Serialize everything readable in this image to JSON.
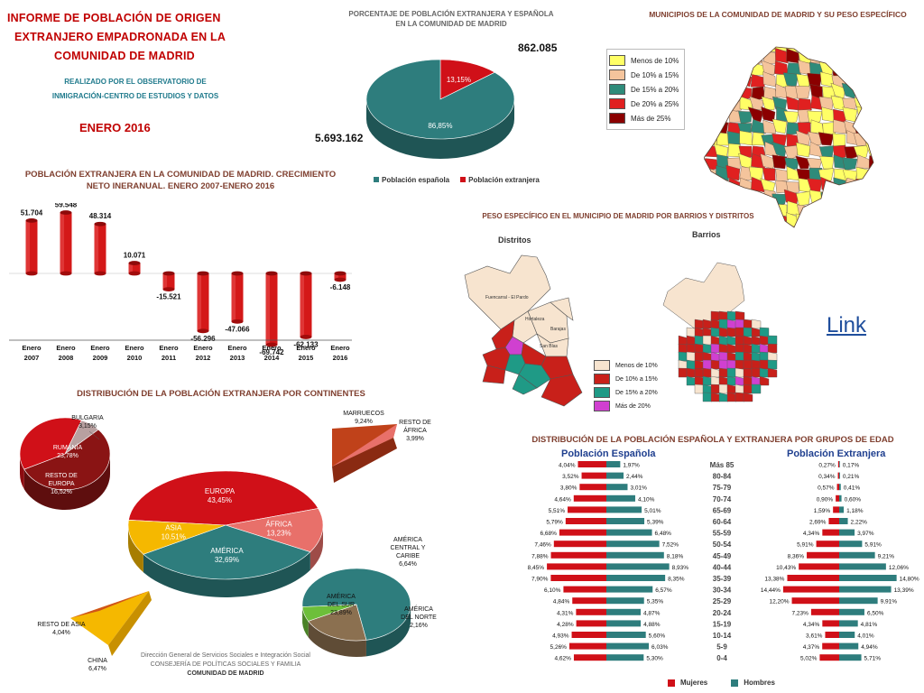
{
  "header": {
    "title_lines": [
      "INFORME DE POBLACIÓN DE ORIGEN",
      "EXTRANJERO EMPADRONADA EN LA",
      "COMUNIDAD DE MADRID"
    ],
    "subtitle_lines": [
      "REALIZADO POR EL OBSERVATORIO DE",
      "INMIGRACIÓN-CENTRO DE ESTUDIOS Y DATOS"
    ],
    "date": "ENERO 2016"
  },
  "pie_main": {
    "title_lines": [
      "PORCENTAJE DE POBLACIÓN EXTRANJERA Y ESPAÑOLA",
      "EN LA COMUNIDAD DE MADRID"
    ],
    "total_foreign": "862.085",
    "total_spanish": "5.693.162",
    "legend": [
      "Población española",
      "Población extranjera"
    ],
    "colors": [
      "#2e7d7d",
      "#d01018"
    ]
  },
  "map_region": {
    "title": "MUNICIPIOS DE LA COMUNIDAD DE MADRID Y SU PESO ESPECÍFICO",
    "legend": [
      {
        "label": "Menos de 10%",
        "color": "#ffff66"
      },
      {
        "label": "De 10% a  15%",
        "color": "#f4c49c"
      },
      {
        "label": "De 15% a  20%",
        "color": "#2e8b7a"
      },
      {
        "label": "De 20% a  25%",
        "color": "#e02020"
      },
      {
        "label": "Más de 25%",
        "color": "#8b0000"
      }
    ]
  },
  "map_city": {
    "title": "PESO ESPECÍFICO EN EL MUNICIPIO DE MADRID POR BARRIOS Y DISTRITOS",
    "distritos_label": "Distritos",
    "barrios_label": "Barrios",
    "district_names": [
      "Fuencarral - El Pardo",
      "Hortaleza",
      "Barajas",
      "San Blas"
    ],
    "legend": [
      {
        "label": "Menos de 10%",
        "color": "#f7e4cf"
      },
      {
        "label": "De 10% a 15%",
        "color": "#c8201a"
      },
      {
        "label": "De 15% a 20%",
        "color": "#1f9a86"
      },
      {
        "label": "Más de 20%",
        "color": "#d040d0"
      }
    ],
    "link_label": "Link"
  },
  "growth": {
    "title_lines": [
      "POBLACIÓN EXTRANJERA EN LA COMUNIDAD DE MADRID. CRECIMIENTO",
      "NETO INERANUAL. ENERO 2007-ENERO 2016"
    ]
  },
  "continents": {
    "title": "DISTRIBUCIÓN DE LA POBLACIÓN EXTRANJERA POR CONTINENTES",
    "footer_lines": [
      "Dirección General de Servicios Sociales e Integración Social",
      "CONSEJERÍA DE  POLÍTICAS SOCIALES Y FAMILIA",
      "COMUNIDAD DE MADRID"
    ]
  },
  "pyramid": {
    "title": "DISTRIBUCIÓN DE LA POBLACIÓN  ESPAÑOLA Y EXTRANJERA POR GRUPOS DE EDAD",
    "left_title": "Población Española",
    "right_title": "Población Extranjera",
    "legend": [
      "Mujeres",
      "Hombres"
    ]
  },
  "chart_data": [
    {
      "type": "pie",
      "title": "PORCENTAJE DE POBLACIÓN EXTRANJERA Y ESPAÑOLA EN LA COMUNIDAD DE MADRID",
      "categories": [
        "Población española",
        "Población extranjera"
      ],
      "values": [
        86.85,
        13.15
      ],
      "labels": [
        "86,85%",
        "13,15%"
      ],
      "colors": [
        "#2e7d7d",
        "#d01018"
      ]
    },
    {
      "type": "bar",
      "title": "POBLACIÓN EXTRANJERA EN LA COMUNIDAD DE MADRID. CRECIMIENTO NETO INERANUAL. ENERO 2007-ENERO 2016",
      "categories": [
        "Enero 2007",
        "Enero 2008",
        "Enero 2009",
        "Enero 2010",
        "Enero 2011",
        "Enero 2012",
        "Enero 2013",
        "Enero 2014",
        "Enero 2015",
        "Enero 2016"
      ],
      "values": [
        51704,
        59548,
        48314,
        10071,
        -15521,
        -56296,
        -47066,
        -69742,
        -62133,
        -6148
      ],
      "labels": [
        "51.704",
        "59.548",
        "48.314",
        "10.071",
        "-15.521",
        "-56.296",
        "-47.066",
        "-69.742",
        "-62.133",
        "-6.148"
      ],
      "ylim": [
        -70000,
        60000
      ]
    },
    {
      "type": "pie",
      "title": "DISTRIBUCIÓN DE LA POBLACIÓN EXTRANJERA POR CONTINENTES",
      "categories": [
        "EUROPA",
        "ÁFRICA",
        "AMÉRICA",
        "ASIA"
      ],
      "values": [
        43.45,
        13.23,
        32.69,
        10.51
      ],
      "labels": [
        "43,45%",
        "13,23%",
        "32,69%",
        "10,51%"
      ],
      "colors": [
        "#d01018",
        "#e8706a",
        "#2e7d7d",
        "#f5b800"
      ]
    },
    {
      "type": "pie",
      "title": "EUROPA",
      "categories": [
        "BULGARIA",
        "RUMANÍA",
        "RESTO DE EUROPA"
      ],
      "values": [
        3.15,
        23.78,
        16.52
      ],
      "labels": [
        "3,15%",
        "23,78%",
        "16,52%"
      ]
    },
    {
      "type": "pie",
      "title": "ÁFRICA",
      "categories": [
        "MARRUECOS",
        "RESTO DE ÁFRICA"
      ],
      "values": [
        9.24,
        3.99
      ],
      "labels": [
        "9,24%",
        "3,99%"
      ]
    },
    {
      "type": "pie",
      "title": "AMÉRICA",
      "categories": [
        "AMÉRICA DEL SUR",
        "AMÉRICA CENTRAL Y CARIBE",
        "AMÉRICA DEL NORTE"
      ],
      "values": [
        23.89,
        6.64,
        2.16
      ],
      "labels": [
        "23,89%",
        "6,64%",
        "2,16%"
      ]
    },
    {
      "type": "pie",
      "title": "ASIA",
      "categories": [
        "RESTO DE ASIA",
        "CHINA"
      ],
      "values": [
        4.04,
        6.47
      ],
      "labels": [
        "4,04%",
        "6,47%"
      ]
    },
    {
      "type": "bar",
      "title": "Población Española",
      "categories": [
        "Más 85",
        "80-84",
        "75-79",
        "70-74",
        "65-69",
        "60-64",
        "55-59",
        "50-54",
        "45-49",
        "40-44",
        "35-39",
        "30-34",
        "25-29",
        "20-24",
        "15-19",
        "10-14",
        "5-9",
        "0-4"
      ],
      "series": [
        {
          "name": "Mujeres",
          "values": [
            4.04,
            3.52,
            3.8,
            4.64,
            5.51,
            5.79,
            6.68,
            7.46,
            7.88,
            8.45,
            7.9,
            6.1,
            4.84,
            4.31,
            4.28,
            4.93,
            5.26,
            4.62
          ],
          "labels": [
            "4,04%",
            "3,52%",
            "3,80%",
            "4,64%",
            "5,51%",
            "5,79%",
            "6,68%",
            "7,46%",
            "7,88%",
            "8,45%",
            "7,90%",
            "6,10%",
            "4,84%",
            "4,31%",
            "4,28%",
            "4,93%",
            "5,26%",
            "4,62%"
          ]
        },
        {
          "name": "Hombres",
          "values": [
            1.97,
            2.44,
            3.01,
            4.1,
            5.01,
            5.39,
            6.48,
            7.52,
            8.18,
            8.93,
            8.35,
            6.57,
            5.35,
            4.87,
            4.88,
            5.6,
            6.03,
            5.3
          ],
          "labels": [
            "1,97%",
            "2,44%",
            "3,01%",
            "4,10%",
            "5,01%",
            "5,39%",
            "6,48%",
            "7,52%",
            "8,18%",
            "8,93%",
            "8,35%",
            "6,57%",
            "5,35%",
            "4,87%",
            "4,88%",
            "5,60%",
            "6,03%",
            "5,30%"
          ]
        }
      ]
    },
    {
      "type": "bar",
      "title": "Población Extranjera",
      "categories": [
        "Más 85",
        "80-84",
        "75-79",
        "70-74",
        "65-69",
        "60-64",
        "55-59",
        "50-54",
        "45-49",
        "40-44",
        "35-39",
        "30-34",
        "25-29",
        "20-24",
        "15-19",
        "10-14",
        "5-9",
        "0-4"
      ],
      "series": [
        {
          "name": "Mujeres",
          "values": [
            0.27,
            0.34,
            0.57,
            0.9,
            1.59,
            2.69,
            4.34,
            5.91,
            8.36,
            10.43,
            13.38,
            14.44,
            12.2,
            7.23,
            4.34,
            3.61,
            4.37,
            5.02
          ],
          "labels": [
            "0,27%",
            "0,34%",
            "0,57%",
            "0,90%",
            "1,59%",
            "2,69%",
            "4,34%",
            "5,91%",
            "8,36%",
            "10,43%",
            "13,38%",
            "14,44%",
            "12,20%",
            "7,23%",
            "4,34%",
            "3,61%",
            "4,37%",
            "5,02%"
          ]
        },
        {
          "name": "Hombres",
          "values": [
            0.17,
            0.21,
            0.41,
            0.6,
            1.18,
            2.22,
            3.97,
            5.91,
            9.21,
            12.06,
            14.8,
            13.39,
            9.91,
            6.5,
            4.81,
            4.01,
            4.94,
            5.71
          ],
          "labels": [
            "0,17%",
            "0,21%",
            "0,41%",
            "0,60%",
            "1,18%",
            "2,22%",
            "3,97%",
            "5,91%",
            "9,21%",
            "12,06%",
            "14,80%",
            "13,39%",
            "9,91%",
            "6,50%",
            "4,81%",
            "4,01%",
            "4,94%",
            "5,71%"
          ]
        }
      ]
    }
  ]
}
